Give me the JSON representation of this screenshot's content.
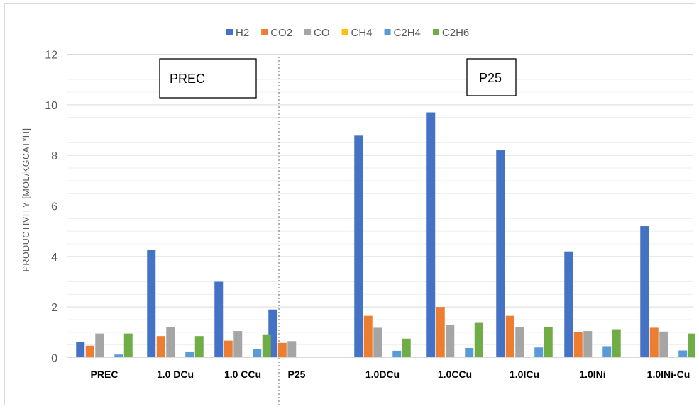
{
  "chart_data": {
    "type": "bar",
    "title": "",
    "xlabel": "",
    "ylabel": "PRODUCTIVITY [MOL/KGCAT*H]",
    "ylim": [
      0,
      12
    ],
    "yticks": [
      0,
      2,
      4,
      6,
      8,
      10,
      12
    ],
    "grid": true,
    "legend_position": "top-center",
    "categories": [
      "PREC",
      "1.0 DCu",
      "1.0 CCu",
      "P25",
      "1.0DCu",
      "1.0CCu",
      "1.0ICu",
      "1.0INi",
      "1.0INi-Cu"
    ],
    "series": [
      {
        "name": "H2",
        "color": "#4472c4",
        "values": [
          0.62,
          4.25,
          3.0,
          1.9,
          8.78,
          9.7,
          8.2,
          4.2,
          5.2
        ]
      },
      {
        "name": "CO2",
        "color": "#ed7d31",
        "values": [
          0.47,
          0.85,
          0.67,
          0.58,
          1.65,
          2.0,
          1.65,
          1.0,
          1.18
        ]
      },
      {
        "name": "CO",
        "color": "#a5a5a5",
        "values": [
          0.95,
          1.2,
          1.05,
          0.65,
          1.18,
          1.28,
          1.2,
          1.05,
          1.03
        ]
      },
      {
        "name": "CH4",
        "color": "#ffc000",
        "values": [
          0.02,
          0.02,
          0.02,
          0,
          0.02,
          0.02,
          0.02,
          0.02,
          0.02
        ]
      },
      {
        "name": "C2H4",
        "color": "#5b9bd5",
        "values": [
          0.12,
          0.24,
          0.35,
          0,
          0.27,
          0.38,
          0.4,
          0.45,
          0.28
        ]
      },
      {
        "name": "C2H6",
        "color": "#70ad47",
        "values": [
          0.95,
          0.85,
          0.92,
          0,
          0.75,
          1.4,
          1.22,
          1.12,
          0.95
        ]
      }
    ],
    "annotations": [
      "PREC",
      "P25"
    ]
  }
}
